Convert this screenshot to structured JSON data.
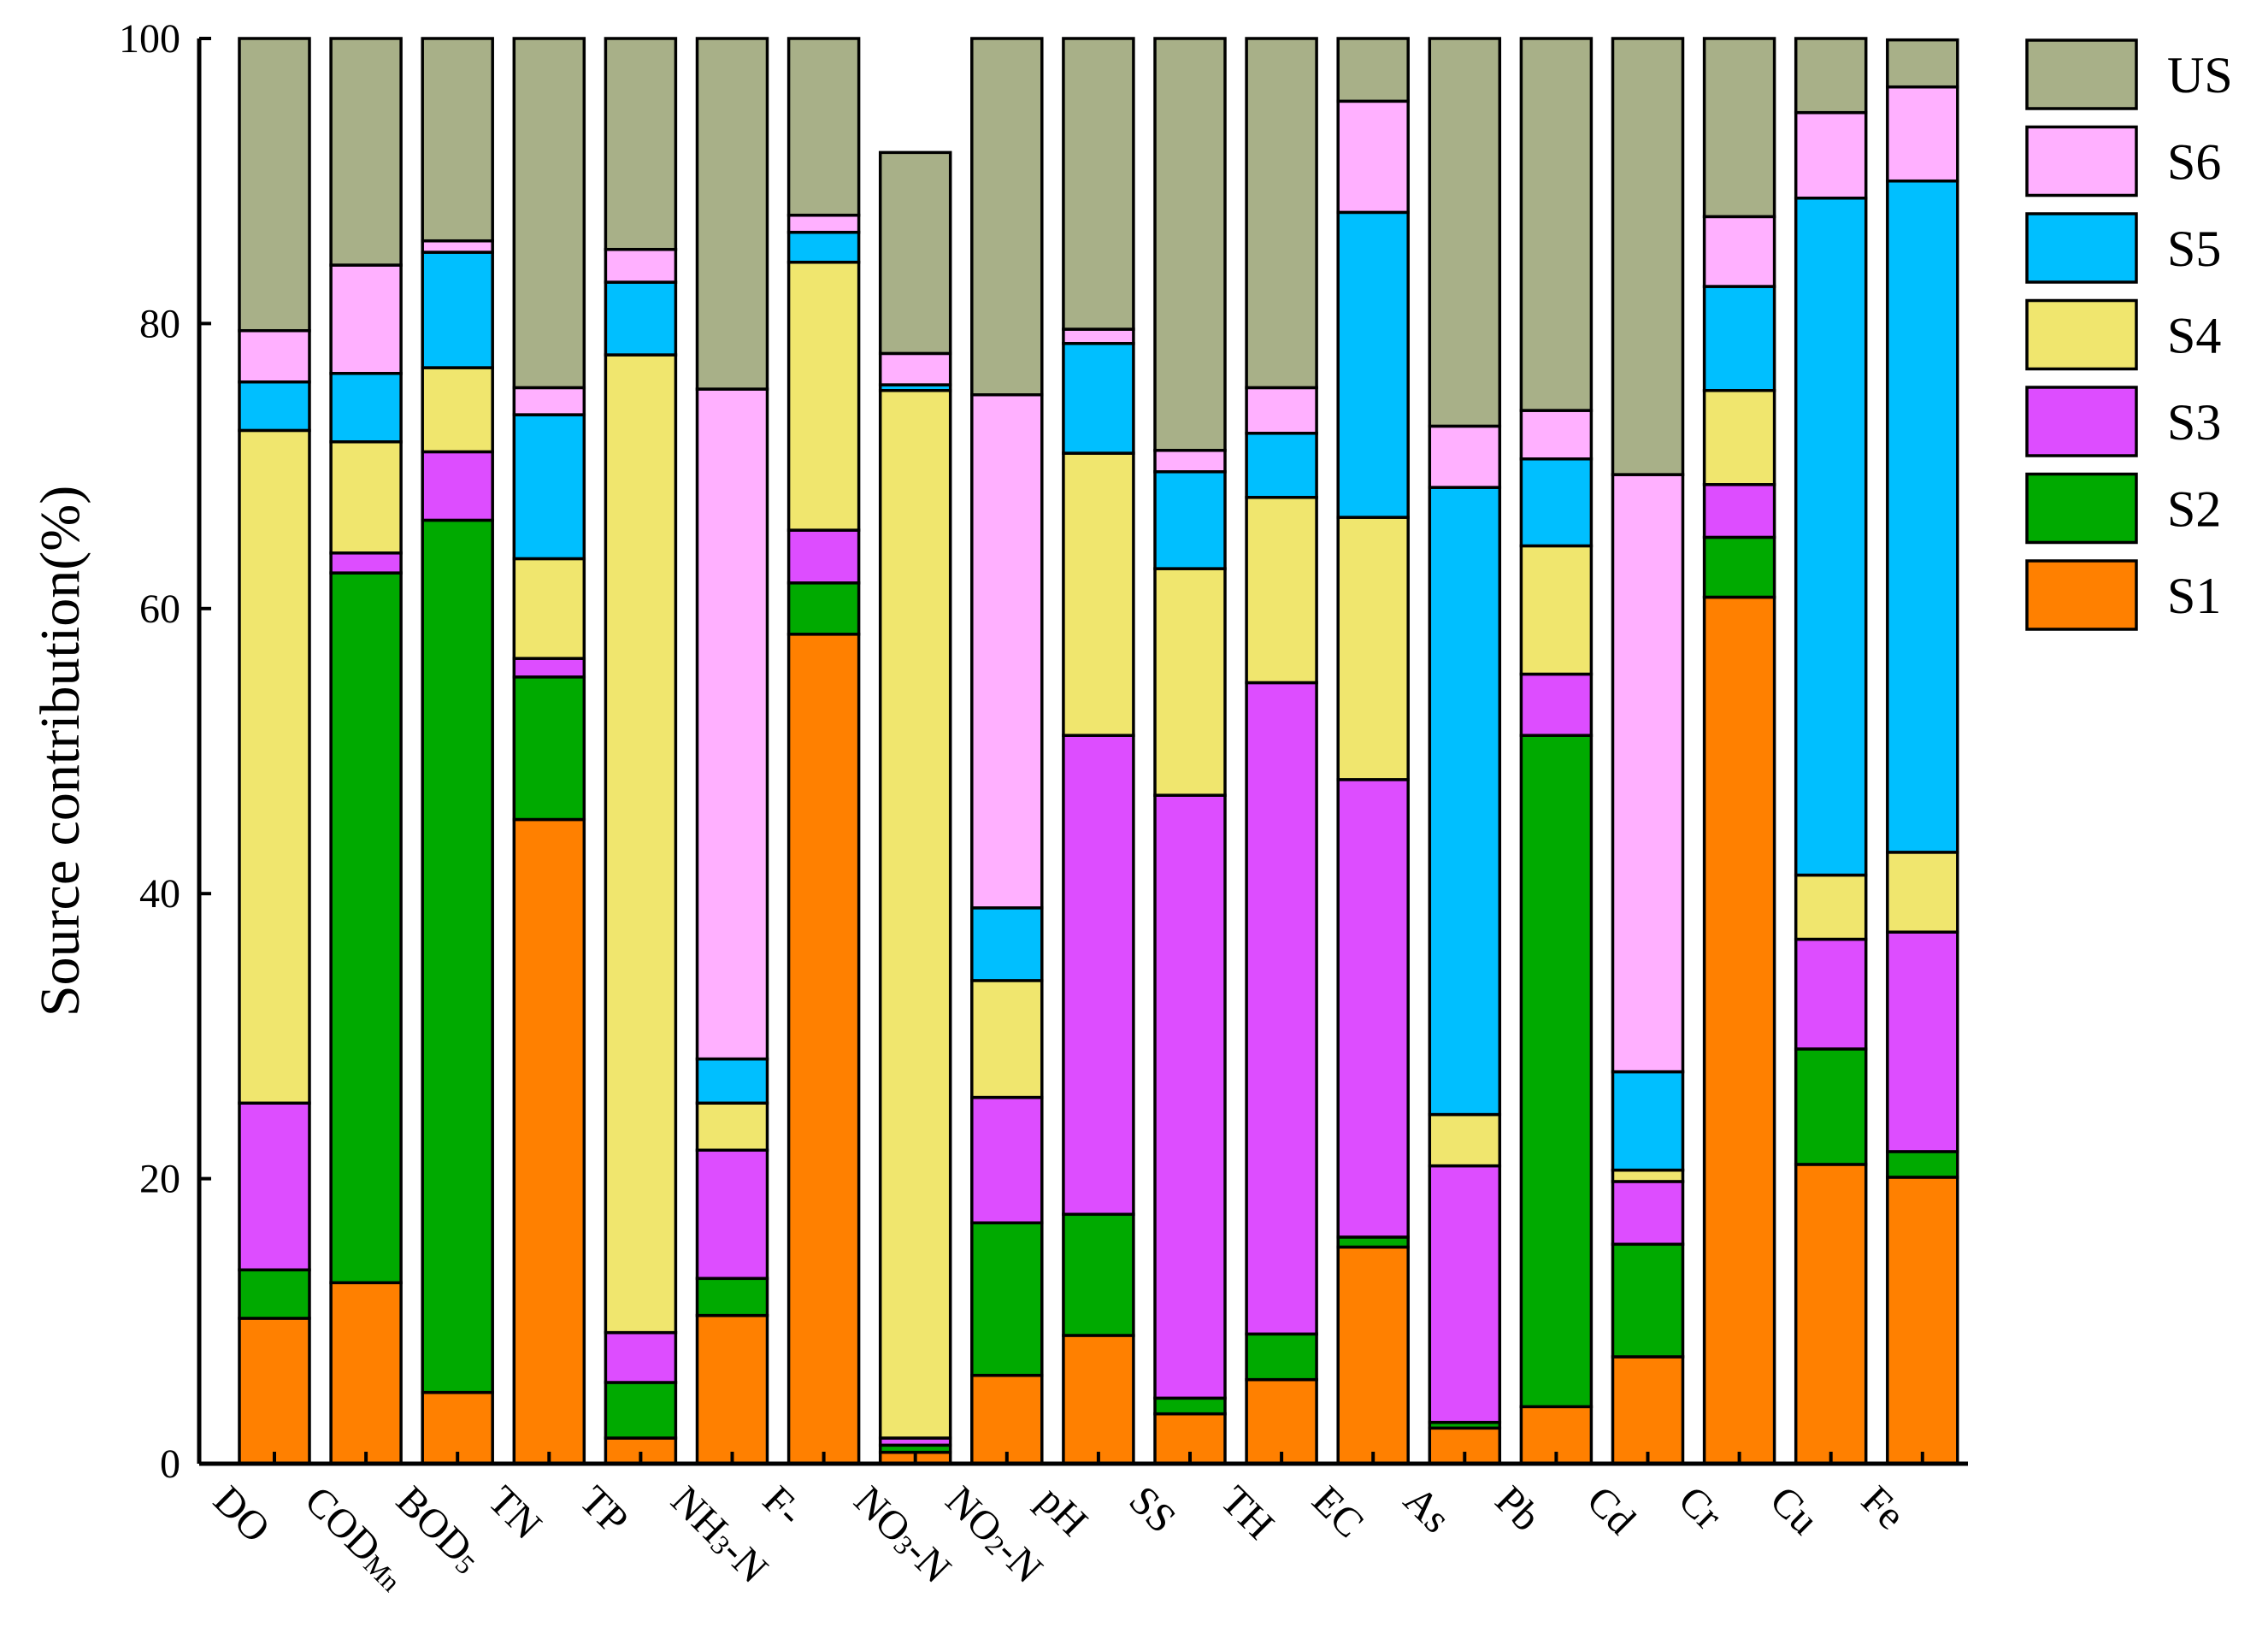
{
  "chart_data": {
    "type": "bar",
    "stacked": true,
    "title": "",
    "xlabel": "",
    "ylabel": "Source contribution(%)",
    "ylim": [
      0,
      100
    ],
    "yticks": [
      0,
      20,
      40,
      60,
      80,
      100
    ],
    "grid": false,
    "legend_position": "right",
    "categories": [
      {
        "text": "DO"
      },
      {
        "text": "CODMn",
        "parts": [
          {
            "t": "COD",
            "sub": false
          },
          {
            "t": "Mn",
            "sub": true
          }
        ]
      },
      {
        "text": "BOD5",
        "parts": [
          {
            "t": "BOD",
            "sub": false
          },
          {
            "t": "5",
            "sub": true
          }
        ]
      },
      {
        "text": "TN"
      },
      {
        "text": "TP"
      },
      {
        "text": "NH3-N",
        "parts": [
          {
            "t": "NH",
            "sub": false
          },
          {
            "t": "3",
            "sub": true
          },
          {
            "t": "-N",
            "sub": false
          }
        ]
      },
      {
        "text": "F-"
      },
      {
        "text": "NO3-N",
        "parts": [
          {
            "t": "NO",
            "sub": false
          },
          {
            "t": "3",
            "sub": true
          },
          {
            "t": "-N",
            "sub": false
          }
        ]
      },
      {
        "text": "NO2-N",
        "parts": [
          {
            "t": "NO",
            "sub": false
          },
          {
            "t": "2",
            "sub": true
          },
          {
            "t": "-N",
            "sub": false
          }
        ]
      },
      {
        "text": "pH"
      },
      {
        "text": "SS"
      },
      {
        "text": "TH"
      },
      {
        "text": "EC"
      },
      {
        "text": "As"
      },
      {
        "text": "Pb"
      },
      {
        "text": "Cd"
      },
      {
        "text": "Cr"
      },
      {
        "text": "Cu"
      },
      {
        "text": "Fe"
      }
    ],
    "series": [
      {
        "name": "S1",
        "color": "#ff8000",
        "values": [
          10.2,
          12.7,
          5.0,
          45.2,
          1.8,
          10.4,
          58.2,
          0.8,
          6.2,
          9.0,
          3.5,
          5.9,
          15.2,
          2.5,
          4.0,
          7.5,
          60.8,
          21.0,
          20.1
        ]
      },
      {
        "name": "S2",
        "color": "#00aa00",
        "values": [
          3.4,
          49.8,
          61.2,
          10.0,
          3.9,
          2.6,
          3.6,
          0.5,
          10.7,
          8.5,
          1.1,
          3.2,
          0.7,
          0.4,
          47.1,
          7.9,
          4.2,
          8.1,
          1.8
        ]
      },
      {
        "name": "S3",
        "color": "#dd4dff",
        "values": [
          11.7,
          1.4,
          4.8,
          1.3,
          3.5,
          9.0,
          3.7,
          0.5,
          8.8,
          33.6,
          42.3,
          45.7,
          32.1,
          18.0,
          4.3,
          4.4,
          3.7,
          7.7,
          15.4
        ]
      },
      {
        "name": "S4",
        "color": "#f0e66e",
        "values": [
          47.2,
          7.8,
          5.9,
          7.0,
          68.6,
          3.3,
          18.8,
          73.5,
          8.2,
          19.8,
          15.9,
          13.0,
          18.4,
          3.6,
          9.0,
          0.8,
          6.6,
          4.5,
          5.6
        ]
      },
      {
        "name": "S5",
        "color": "#00bfff",
        "values": [
          3.4,
          4.8,
          8.1,
          10.1,
          5.1,
          3.1,
          2.1,
          0.4,
          5.1,
          7.7,
          6.8,
          4.5,
          21.4,
          44.0,
          6.1,
          6.9,
          7.3,
          47.5,
          47.1
        ]
      },
      {
        "name": "S6",
        "color": "#ffb0ff",
        "values": [
          3.6,
          7.6,
          0.8,
          1.9,
          2.3,
          47.0,
          1.2,
          2.2,
          36.0,
          1.0,
          1.5,
          3.2,
          7.8,
          4.3,
          3.4,
          41.9,
          4.9,
          6.0,
          6.6
        ]
      },
      {
        "name": "US",
        "color": "#a8b088",
        "values": [
          20.5,
          15.9,
          14.2,
          24.5,
          14.8,
          24.6,
          12.4,
          14.1,
          25.0,
          20.4,
          28.9,
          24.5,
          4.4,
          27.2,
          26.1,
          30.6,
          12.5,
          5.2,
          3.3
        ]
      }
    ]
  }
}
